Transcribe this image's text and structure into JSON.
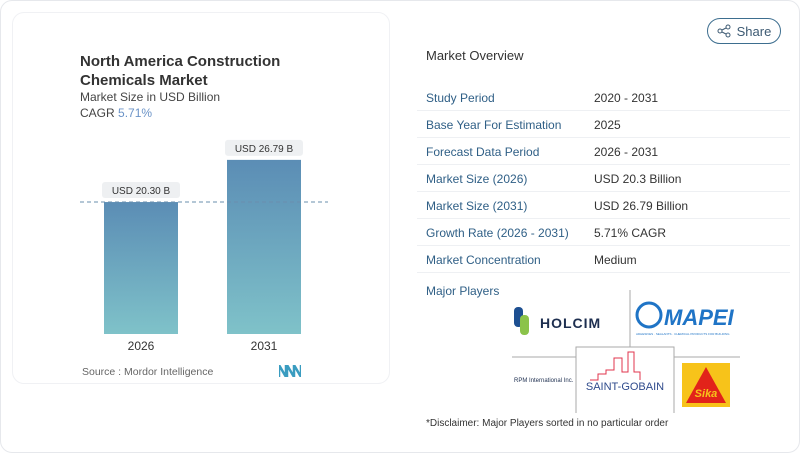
{
  "chart_card": {
    "title": "North America Construction Chemicals Market",
    "subtitle": "Market Size in USD Billion",
    "cagr_label": "CAGR",
    "cagr_value": "5.71%",
    "source": "Source :  Mordor Intelligence"
  },
  "chart_data": {
    "type": "bar",
    "categories": [
      "2026",
      "2031"
    ],
    "values": [
      20.3,
      26.79
    ],
    "data_labels": [
      "USD 20.30 B",
      "USD 26.79 B"
    ],
    "title": "North America Construction Chemicals Market",
    "ylabel": "Market Size in USD Billion",
    "ylim": [
      0,
      30
    ],
    "grid": false,
    "reference_line": 20.3,
    "colors": {
      "top": "#5b8db5",
      "bottom": "#7fc2c9"
    }
  },
  "share": {
    "label": "Share",
    "icon": "share-icon"
  },
  "overview": {
    "title": "Market Overview",
    "rows": [
      {
        "label": "Study Period",
        "value": "2020 - 2031"
      },
      {
        "label": "Base Year For Estimation",
        "value": "2025"
      },
      {
        "label": "Forecast Data Period",
        "value": "2026 - 2031"
      },
      {
        "label": "Market Size (2026)",
        "value": "USD 20.3 Billion"
      },
      {
        "label": "Market Size (2031)",
        "value": "USD 26.79 Billion"
      },
      {
        "label": "Growth Rate (2026 - 2031)",
        "value": "5.71% CAGR"
      },
      {
        "label": "Market Concentration",
        "value": "Medium"
      }
    ]
  },
  "players": {
    "title": "Major Players",
    "logos": [
      "HOLCIM",
      "MAPEI",
      "RPM International Inc.",
      "SAINT-GOBAIN",
      "Sika"
    ],
    "mapei_tagline": "ADHESIVES · SEALANTS · CHEMICAL PRODUCTS FOR BUILDING"
  },
  "disclaimer": "*Disclaimer: Major Players sorted in no particular order"
}
